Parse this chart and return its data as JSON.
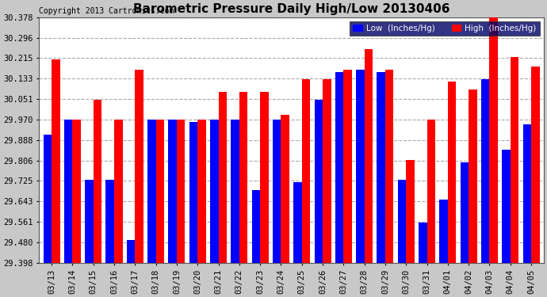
{
  "title": "Barometric Pressure Daily High/Low 20130406",
  "copyright": "Copyright 2013 Cartronics.com",
  "dates": [
    "03/13",
    "03/14",
    "03/15",
    "03/16",
    "03/17",
    "03/18",
    "03/19",
    "03/20",
    "03/21",
    "03/22",
    "03/23",
    "03/24",
    "03/25",
    "03/26",
    "03/27",
    "03/28",
    "03/29",
    "03/30",
    "03/31",
    "04/01",
    "04/02",
    "04/03",
    "04/04",
    "04/05"
  ],
  "low_values": [
    29.91,
    29.97,
    29.73,
    29.73,
    29.49,
    29.97,
    29.97,
    29.96,
    29.97,
    29.97,
    29.69,
    29.97,
    29.72,
    30.05,
    30.16,
    30.17,
    30.16,
    29.73,
    29.56,
    29.65,
    29.8,
    30.13,
    29.85,
    29.95
  ],
  "high_values": [
    30.21,
    29.97,
    30.05,
    29.97,
    30.17,
    29.97,
    29.97,
    29.97,
    30.08,
    30.08,
    30.08,
    29.99,
    30.13,
    30.13,
    30.17,
    30.25,
    30.17,
    29.81,
    29.97,
    30.12,
    30.09,
    30.38,
    30.22,
    30.18
  ],
  "ylim_min": 29.398,
  "ylim_max": 30.378,
  "yticks": [
    29.398,
    29.48,
    29.561,
    29.643,
    29.725,
    29.806,
    29.888,
    29.97,
    30.051,
    30.133,
    30.215,
    30.296,
    30.378
  ],
  "low_color": "#0000ff",
  "high_color": "#ff0000",
  "bg_color": "#c8c8c8",
  "plot_bg_color": "#ffffff",
  "grid_color": "#aaaaaa",
  "title_color": "#000000",
  "copyright_color": "#000000"
}
